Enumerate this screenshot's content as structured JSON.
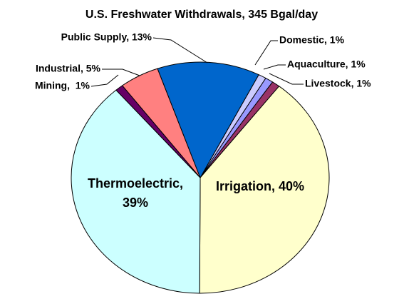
{
  "chart_data": {
    "type": "pie",
    "title": "U.S. Freshwater Withdrawals, 345 Bgal/day",
    "values": [
      1,
      1,
      1,
      40,
      39,
      1,
      5,
      13
    ],
    "value_labels": [
      "Domestic, 1%",
      "Aquaculture, 1%",
      "Livestock, 1%",
      "Irrigation, 40%",
      "Thermoelectric, 39%",
      "Mining,  1%",
      "Industrial, 5%",
      "Public Supply, 13%"
    ],
    "colors": [
      "#CCCCFF",
      "#9999FF",
      "#993366",
      "#FFFFCC",
      "#CCFFFF",
      "#660066",
      "#FF8080",
      "#0066CC"
    ]
  }
}
